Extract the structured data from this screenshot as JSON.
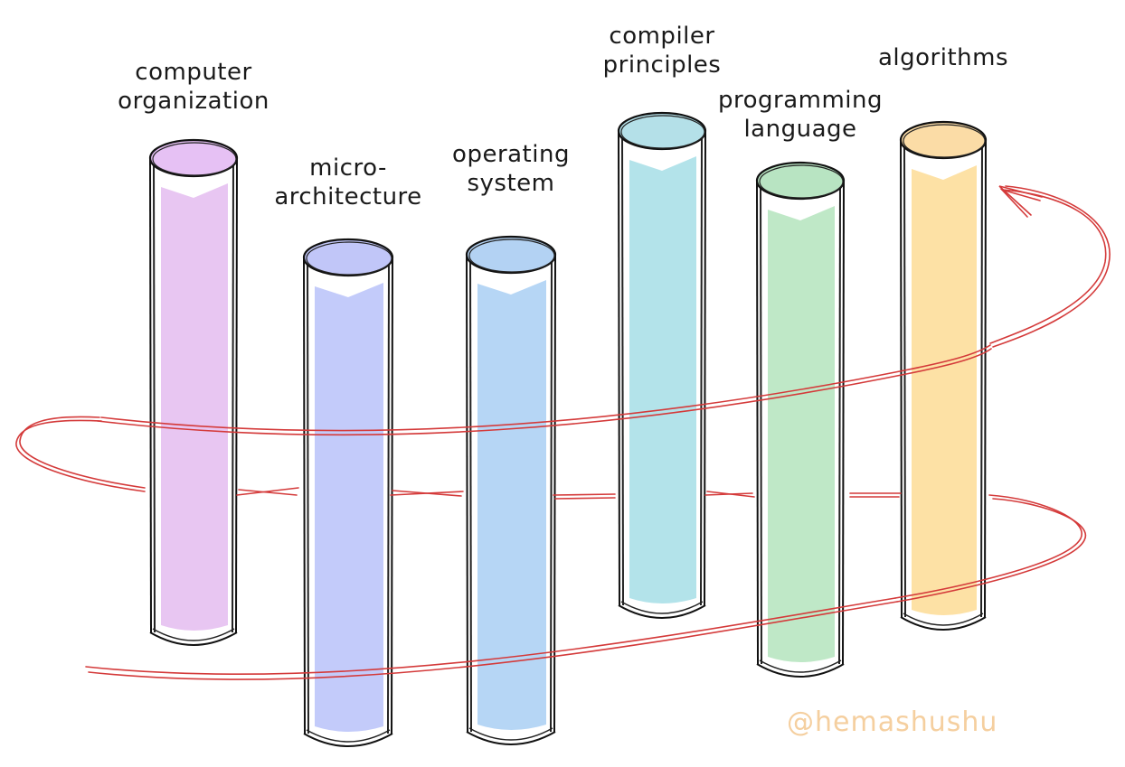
{
  "pillars": [
    {
      "label_lines": [
        "computer",
        "organization"
      ],
      "color": "#e8c6f2",
      "lid": "#e6c1f4"
    },
    {
      "label_lines": [
        "micro-",
        "architecture"
      ],
      "color": "#c3cbfa",
      "lid": "#c1c6f8"
    },
    {
      "label_lines": [
        "operating",
        "system"
      ],
      "color": "#b6d6f5",
      "lid": "#b3d2f3"
    },
    {
      "label_lines": [
        "compiler",
        "principles"
      ],
      "color": "#b3e3ea",
      "lid": "#b4e0e8"
    },
    {
      "label_lines": [
        "programming",
        "language"
      ],
      "color": "#bfe8c7",
      "lid": "#b8e4c2"
    },
    {
      "label_lines": [
        "algorithms"
      ],
      "color": "#fde1a5",
      "lid": "#fbdca6"
    }
  ],
  "thread_color": "#d43a3a",
  "watermark": "@hemashushu"
}
